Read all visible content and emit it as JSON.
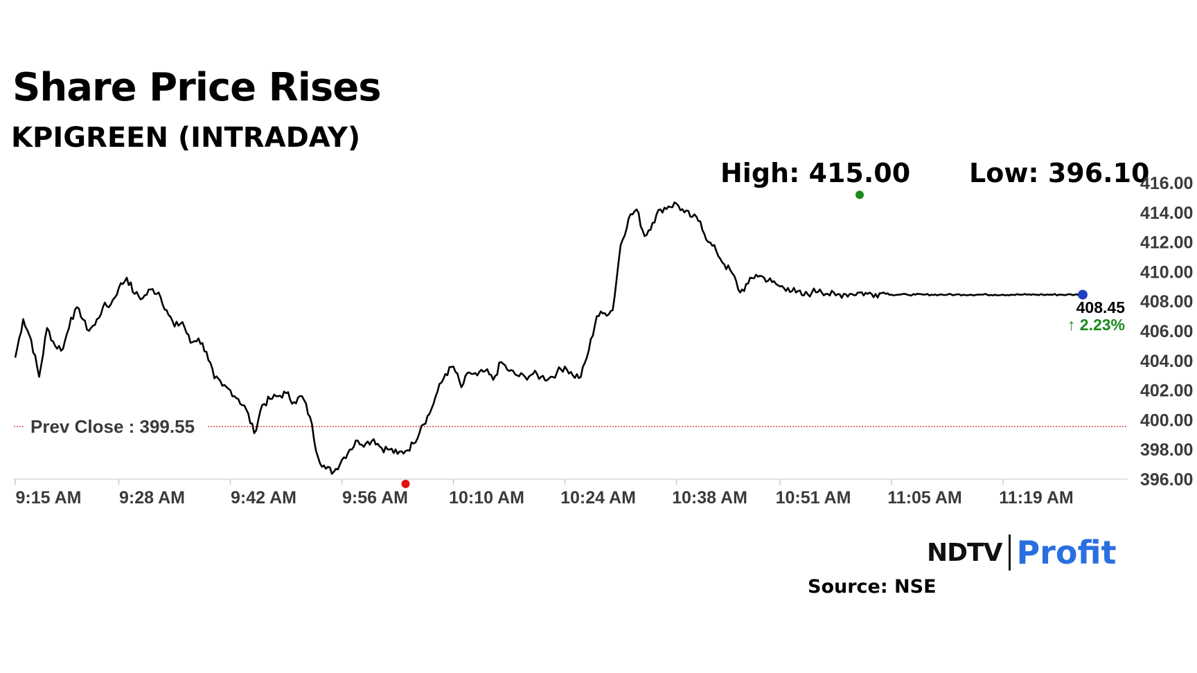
{
  "header": {
    "title": "Share Price Rises",
    "subtitle": "KPIGREEN (INTRADAY)",
    "high_label": "High: 415.00",
    "low_label": "Low: 396.10"
  },
  "footer": {
    "brand_ndtv": "NDTV",
    "brand_profit": "Profit",
    "source": "Source: NSE"
  },
  "colors": {
    "line": "#000000",
    "high_marker": "#1a8a1a",
    "low_marker": "#e01010",
    "last_marker": "#1f3fbf",
    "prev_close_line": "#cc2222",
    "change_up": "#1a8a1a",
    "brand_profit": "#2a6fe0"
  },
  "chart_data": {
    "type": "line",
    "title": "Share Price Rises",
    "subtitle": "KPIGREEN (INTRADAY)",
    "ylim": [
      396.0,
      416.0
    ],
    "y_ticks": [
      "416.00",
      "414.00",
      "412.00",
      "410.00",
      "408.00",
      "406.00",
      "404.00",
      "402.00",
      "400.00",
      "398.00",
      "396.00"
    ],
    "x_ticks": [
      "9:15 AM",
      "9:28 AM",
      "9:42 AM",
      "9:56 AM",
      "10:10 AM",
      "10:24 AM",
      "10:38 AM",
      "10:51 AM",
      "11:05 AM",
      "11:19 AM"
    ],
    "grid": false,
    "prev_close": {
      "label": "Prev Close : 399.55",
      "value": 399.55
    },
    "high": {
      "label": "High: 415.00",
      "value": 415.0,
      "time": "11:01 AM"
    },
    "low": {
      "label": "Low: 396.10",
      "value": 396.1,
      "time": "10:04 AM"
    },
    "last": {
      "price": "408.45",
      "change": "2.23%",
      "value": 408.45
    },
    "series": [
      {
        "x": [
          "9:15 AM",
          "9:16 AM",
          "9:17 AM",
          "9:18 AM",
          "9:19 AM",
          "9:20 AM",
          "9:21 AM",
          "9:22 AM",
          "9:23 AM",
          "9:24 AM",
          "9:25 AM",
          "9:26 AM",
          "9:27 AM",
          "9:28 AM",
          "9:29 AM",
          "9:30 AM",
          "9:31 AM",
          "9:32 AM",
          "9:33 AM",
          "9:34 AM",
          "9:35 AM",
          "9:36 AM",
          "9:37 AM",
          "9:38 AM",
          "9:39 AM",
          "9:40 AM",
          "9:41 AM",
          "9:42 AM",
          "9:43 AM",
          "9:44 AM",
          "9:45 AM",
          "9:46 AM",
          "9:47 AM",
          "9:48 AM",
          "9:49 AM",
          "9:50 AM",
          "9:51 AM",
          "9:52 AM",
          "9:53 AM",
          "9:54 AM",
          "9:55 AM",
          "9:56 AM",
          "9:57 AM",
          "9:58 AM",
          "9:59 AM",
          "10:00 AM",
          "10:01 AM",
          "10:02 AM",
          "10:03 AM",
          "10:04 AM",
          "10:05 AM",
          "10:06 AM",
          "10:07 AM",
          "10:08 AM",
          "10:09 AM",
          "10:10 AM",
          "10:11 AM",
          "10:12 AM",
          "10:13 AM",
          "10:14 AM",
          "10:15 AM",
          "10:16 AM",
          "10:17 AM",
          "10:18 AM",
          "10:19 AM",
          "10:20 AM",
          "10:21 AM",
          "10:22 AM",
          "10:23 AM",
          "10:24 AM",
          "10:25 AM",
          "10:26 AM",
          "10:27 AM",
          "10:28 AM",
          "10:29 AM",
          "10:30 AM",
          "10:31 AM",
          "10:32 AM",
          "10:33 AM",
          "10:34 AM",
          "10:35 AM",
          "10:36 AM",
          "10:37 AM",
          "10:38 AM",
          "10:39 AM",
          "10:40 AM",
          "10:41 AM",
          "10:42 AM",
          "10:43 AM",
          "10:44 AM",
          "10:45 AM",
          "10:46 AM",
          "10:47 AM",
          "10:48 AM",
          "10:49 AM",
          "10:50 AM",
          "10:51 AM",
          "10:52 AM",
          "10:53 AM",
          "10:54 AM",
          "10:55 AM",
          "10:56 AM",
          "10:57 AM",
          "10:58 AM",
          "10:59 AM",
          "11:00 AM",
          "11:01 AM",
          "11:02 AM",
          "11:03 AM",
          "11:04 AM",
          "11:05 AM",
          "11:06 AM",
          "11:07 AM",
          "11:08 AM",
          "11:09 AM",
          "11:10 AM",
          "11:11 AM",
          "11:12 AM",
          "11:13 AM",
          "11:14 AM",
          "11:15 AM",
          "11:16 AM",
          "11:17 AM",
          "11:18 AM",
          "11:19 AM",
          "11:20 AM",
          "11:21 AM",
          "11:22 AM",
          "11:23 AM",
          "11:24 AM",
          "11:25 AM",
          "11:26 AM",
          "11:27 AM",
          "11:28 AM",
          "11:29 AM"
        ],
        "y": [
          404.2,
          406.8,
          405.4,
          402.9,
          406.2,
          405.0,
          404.8,
          406.9,
          407.5,
          406.1,
          406.4,
          407.6,
          407.8,
          408.9,
          409.6,
          408.5,
          408.2,
          408.8,
          408.6,
          407.4,
          406.3,
          406.6,
          405.2,
          405.5,
          404.6,
          402.8,
          402.3,
          402.0,
          401.4,
          400.7,
          399.1,
          401.0,
          401.4,
          401.6,
          401.8,
          401.2,
          401.6,
          400.2,
          397.5,
          396.7,
          396.5,
          397.3,
          398.0,
          398.6,
          398.4,
          398.7,
          398.1,
          398.0,
          397.7,
          397.9,
          398.4,
          399.6,
          400.4,
          401.9,
          403.1,
          403.6,
          402.2,
          403.2,
          403.0,
          403.3,
          402.7,
          403.9,
          403.3,
          403.0,
          402.9,
          403.1,
          402.9,
          402.8,
          403.2,
          403.6,
          403.0,
          402.9,
          404.7,
          407.0,
          407.2,
          407.4,
          411.8,
          413.6,
          414.2,
          412.4,
          413.3,
          414.2,
          414.4,
          414.6,
          414.0,
          413.7,
          413.4,
          412.0,
          411.4,
          410.5,
          409.9,
          408.6,
          409.2,
          409.8,
          409.6,
          409.3,
          409.0,
          408.9,
          408.6,
          408.4,
          408.6,
          408.8,
          408.5,
          408.4,
          408.5,
          408.5,
          408.6,
          408.5,
          408.5,
          408.6,
          408.45,
          408.45,
          408.45,
          408.45,
          408.45,
          408.45,
          408.45,
          408.45,
          408.45,
          408.45,
          408.45,
          408.45,
          408.45,
          408.45,
          408.45,
          408.45,
          408.45,
          408.45,
          408.45,
          408.45,
          408.45,
          408.45,
          408.45,
          408.45,
          408.45
        ]
      }
    ]
  }
}
